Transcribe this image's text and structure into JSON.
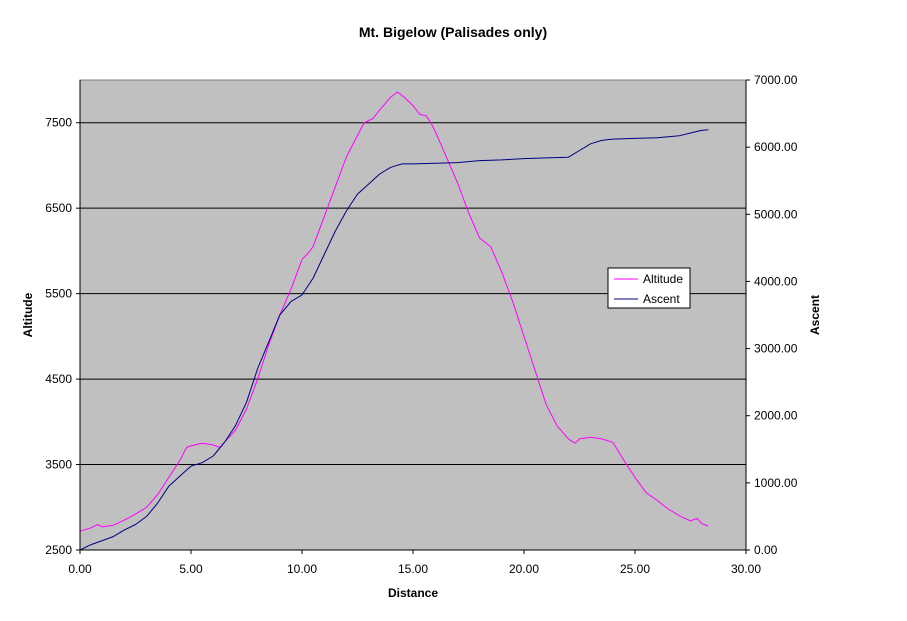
{
  "chart_data": {
    "type": "line",
    "title": "Mt. Bigelow (Palisades only)",
    "xlabel": "Distance",
    "ylabel": "Altitude",
    "y2label": "Ascent",
    "xlim": [
      0,
      30
    ],
    "ylim": [
      2500,
      8000
    ],
    "y2lim": [
      0,
      7000
    ],
    "x_ticks": [
      "0.00",
      "5.00",
      "10.00",
      "15.00",
      "20.00",
      "25.00",
      "30.00"
    ],
    "y_ticks": [
      "2500",
      "3500",
      "4500",
      "5500",
      "6500",
      "7500"
    ],
    "y2_ticks": [
      "0.00",
      "1000.00",
      "2000.00",
      "3000.00",
      "4000.00",
      "5000.00",
      "6000.00",
      "7000.00"
    ],
    "grid": "horizontal",
    "legend_position": "right",
    "series": [
      {
        "name": "Altitude",
        "axis": "left",
        "color": "#ff00ff",
        "x": [
          0,
          0.5,
          0.8,
          1.0,
          1.5,
          2.0,
          2.5,
          3.0,
          3.5,
          4.0,
          4.5,
          4.8,
          5.0,
          5.5,
          6.0,
          6.3,
          6.5,
          7.0,
          7.5,
          8.0,
          8.5,
          9.0,
          9.5,
          10.0,
          10.3,
          10.5,
          11.0,
          11.5,
          12.0,
          12.5,
          12.8,
          13.2,
          13.5,
          14.0,
          14.3,
          14.6,
          15.0,
          15.3,
          15.6,
          15.8,
          16.0,
          16.5,
          17.0,
          17.5,
          18.0,
          18.5,
          19.0,
          19.5,
          20.0,
          20.5,
          21.0,
          21.5,
          22.0,
          22.3,
          22.5,
          23.0,
          23.5,
          24.0,
          24.5,
          25.0,
          25.5,
          26.0,
          26.5,
          27.0,
          27.5,
          27.8,
          28.0,
          28.3
        ],
        "y": [
          2720,
          2760,
          2800,
          2770,
          2790,
          2850,
          2920,
          3000,
          3150,
          3350,
          3550,
          3700,
          3720,
          3750,
          3730,
          3700,
          3760,
          3900,
          4150,
          4500,
          4900,
          5250,
          5550,
          5900,
          5980,
          6050,
          6400,
          6750,
          7100,
          7350,
          7500,
          7550,
          7650,
          7800,
          7860,
          7800,
          7700,
          7600,
          7580,
          7500,
          7400,
          7100,
          6800,
          6450,
          6150,
          6050,
          5750,
          5400,
          5000,
          4600,
          4200,
          3950,
          3800,
          3750,
          3800,
          3820,
          3800,
          3760,
          3550,
          3350,
          3170,
          3080,
          2980,
          2900,
          2840,
          2870,
          2810,
          2780
        ]
      },
      {
        "name": "Ascent",
        "axis": "right",
        "color": "#000080",
        "x": [
          0,
          0.5,
          1.0,
          1.5,
          2.0,
          2.5,
          3.0,
          3.5,
          4.0,
          4.5,
          5.0,
          5.5,
          6.0,
          6.5,
          7.0,
          7.5,
          8.0,
          8.5,
          9.0,
          9.5,
          10.0,
          10.5,
          11.0,
          11.5,
          12.0,
          12.5,
          13.0,
          13.5,
          14.0,
          14.5,
          15.0,
          16.0,
          17.0,
          18.0,
          19.0,
          20.0,
          21.0,
          22.0,
          22.5,
          23.0,
          23.5,
          24.0,
          25.0,
          26.0,
          27.0,
          27.5,
          28.0,
          28.3
        ],
        "y": [
          0,
          80,
          140,
          200,
          300,
          380,
          500,
          700,
          950,
          1100,
          1250,
          1300,
          1400,
          1600,
          1850,
          2200,
          2700,
          3100,
          3500,
          3700,
          3800,
          4050,
          4400,
          4750,
          5050,
          5300,
          5450,
          5600,
          5700,
          5750,
          5750,
          5760,
          5770,
          5800,
          5810,
          5830,
          5840,
          5850,
          5950,
          6050,
          6100,
          6120,
          6130,
          6140,
          6170,
          6210,
          6250,
          6260
        ]
      }
    ]
  }
}
